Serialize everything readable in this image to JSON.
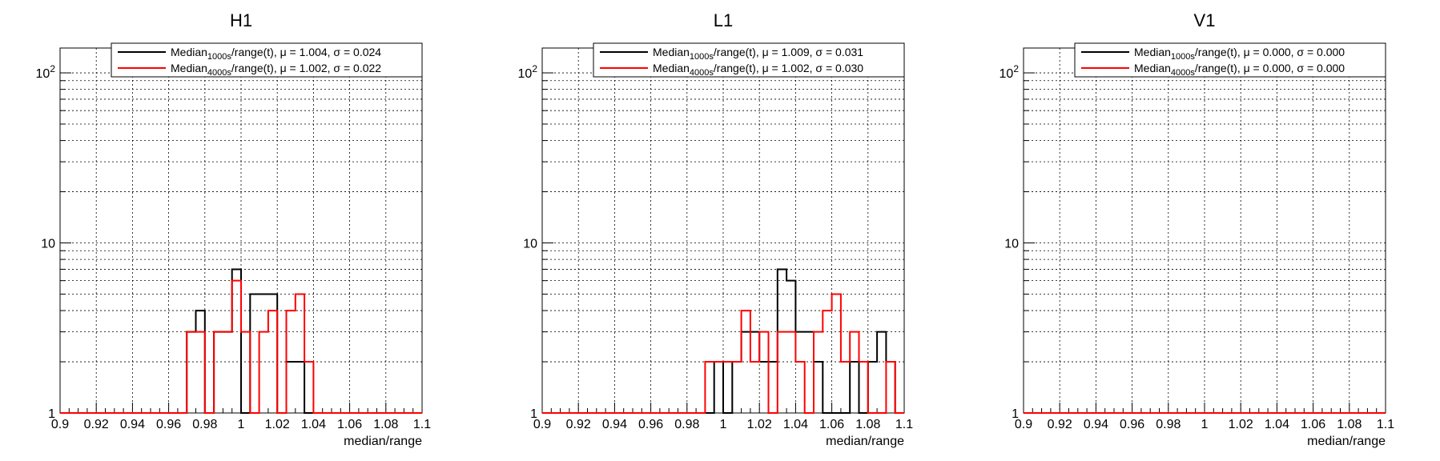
{
  "chart_data": [
    {
      "type": "histogram",
      "title": "H1",
      "xlabel": "median/range",
      "ylabel": "",
      "xlim": [
        0.9,
        1.1
      ],
      "ylim": [
        1,
        140
      ],
      "yscale": "log",
      "grid": true,
      "legend_position": "top-right",
      "xticks": [
        "0.9",
        "0.92",
        "0.94",
        "0.96",
        "0.98",
        "1",
        "1.02",
        "1.04",
        "1.06",
        "1.08",
        "1.1"
      ],
      "yticks": [
        {
          "value": 1,
          "label": "1"
        },
        {
          "value": 10,
          "label": "10"
        },
        {
          "value": 100,
          "label": "10",
          "exp": "2"
        }
      ],
      "bin_edges_start": 0.9,
      "bin_width": 0.005,
      "series": [
        {
          "name": "Median_1000s/range(t)",
          "legend": {
            "base": "Median",
            "sub": "1000s",
            "rest": "/range(t), μ = 1.004, σ = 0.024"
          },
          "color": "#000000",
          "values": [
            1,
            1,
            1,
            1,
            1,
            1,
            1,
            1,
            1,
            1,
            1,
            1,
            1,
            1,
            3,
            4,
            1,
            3,
            3,
            7,
            1,
            5,
            5,
            5,
            1,
            2,
            2,
            1,
            1,
            1,
            1,
            1,
            1,
            1,
            1,
            1,
            1,
            1,
            1,
            1
          ]
        },
        {
          "name": "Median_4000s/range(t)",
          "legend": {
            "base": "Median",
            "sub": "4000s",
            "rest": "/range(t), μ = 1.002, σ = 0.022"
          },
          "color": "#ff0000",
          "values": [
            1,
            1,
            1,
            1,
            1,
            1,
            1,
            1,
            1,
            1,
            1,
            1,
            1,
            1,
            3,
            3,
            1,
            3,
            3,
            6,
            3,
            1,
            3,
            4,
            1,
            4,
            5,
            2,
            1,
            1,
            1,
            1,
            1,
            1,
            1,
            1,
            1,
            1,
            1,
            1
          ]
        }
      ]
    },
    {
      "type": "histogram",
      "title": "L1",
      "xlabel": "median/range",
      "ylabel": "",
      "xlim": [
        0.9,
        1.1
      ],
      "ylim": [
        1,
        140
      ],
      "yscale": "log",
      "grid": true,
      "legend_position": "top-right",
      "xticks": [
        "0.9",
        "0.92",
        "0.94",
        "0.96",
        "0.98",
        "1",
        "1.02",
        "1.04",
        "1.06",
        "1.08",
        "1.1"
      ],
      "yticks": [
        {
          "value": 1,
          "label": "1"
        },
        {
          "value": 10,
          "label": "10"
        },
        {
          "value": 100,
          "label": "10",
          "exp": "2"
        }
      ],
      "bin_edges_start": 0.9,
      "bin_width": 0.005,
      "series": [
        {
          "name": "Median_1000s/range(t)",
          "legend": {
            "base": "Median",
            "sub": "1000s",
            "rest": "/range(t), μ = 1.009, σ = 0.031"
          },
          "color": "#000000",
          "values": [
            1,
            1,
            1,
            1,
            1,
            1,
            1,
            1,
            1,
            1,
            1,
            1,
            1,
            1,
            1,
            1,
            1,
            1,
            1,
            2,
            1,
            2,
            3,
            3,
            2,
            2,
            7,
            6,
            3,
            3,
            2,
            1,
            1,
            1,
            2,
            1,
            2,
            3,
            2,
            1
          ]
        },
        {
          "name": "Median_4000s/range(t)",
          "legend": {
            "base": "Median",
            "sub": "4000s",
            "rest": "/range(t), μ = 1.002, σ = 0.030"
          },
          "color": "#ff0000",
          "values": [
            1,
            1,
            1,
            1,
            1,
            1,
            1,
            1,
            1,
            1,
            1,
            1,
            1,
            1,
            1,
            1,
            1,
            1,
            2,
            2,
            2,
            2,
            4,
            2,
            3,
            1,
            3,
            3,
            2,
            1,
            3,
            4,
            5,
            2,
            3,
            2,
            1,
            1,
            2,
            1
          ]
        }
      ]
    },
    {
      "type": "histogram",
      "title": "V1",
      "xlabel": "median/range",
      "ylabel": "",
      "xlim": [
        0.9,
        1.1
      ],
      "ylim": [
        1,
        140
      ],
      "yscale": "log",
      "grid": true,
      "legend_position": "top-right",
      "xticks": [
        "0.9",
        "0.92",
        "0.94",
        "0.96",
        "0.98",
        "1",
        "1.02",
        "1.04",
        "1.06",
        "1.08",
        "1.1"
      ],
      "yticks": [
        {
          "value": 1,
          "label": "1"
        },
        {
          "value": 10,
          "label": "10"
        },
        {
          "value": 100,
          "label": "10",
          "exp": "2"
        }
      ],
      "bin_edges_start": 0.9,
      "bin_width": 0.005,
      "series": [
        {
          "name": "Median_1000s/range(t)",
          "legend": {
            "base": "Median",
            "sub": "1000s",
            "rest": "/range(t), μ = 0.000, σ = 0.000"
          },
          "color": "#000000",
          "values": [
            1,
            1,
            1,
            1,
            1,
            1,
            1,
            1,
            1,
            1,
            1,
            1,
            1,
            1,
            1,
            1,
            1,
            1,
            1,
            1,
            1,
            1,
            1,
            1,
            1,
            1,
            1,
            1,
            1,
            1,
            1,
            1,
            1,
            1,
            1,
            1,
            1,
            1,
            1,
            1
          ]
        },
        {
          "name": "Median_4000s/range(t)",
          "legend": {
            "base": "Median",
            "sub": "4000s",
            "rest": "/range(t), μ = 0.000, σ = 0.000"
          },
          "color": "#ff0000",
          "values": [
            1,
            1,
            1,
            1,
            1,
            1,
            1,
            1,
            1,
            1,
            1,
            1,
            1,
            1,
            1,
            1,
            1,
            1,
            1,
            1,
            1,
            1,
            1,
            1,
            1,
            1,
            1,
            1,
            1,
            1,
            1,
            1,
            1,
            1,
            1,
            1,
            1,
            1,
            1,
            1
          ]
        }
      ]
    }
  ]
}
